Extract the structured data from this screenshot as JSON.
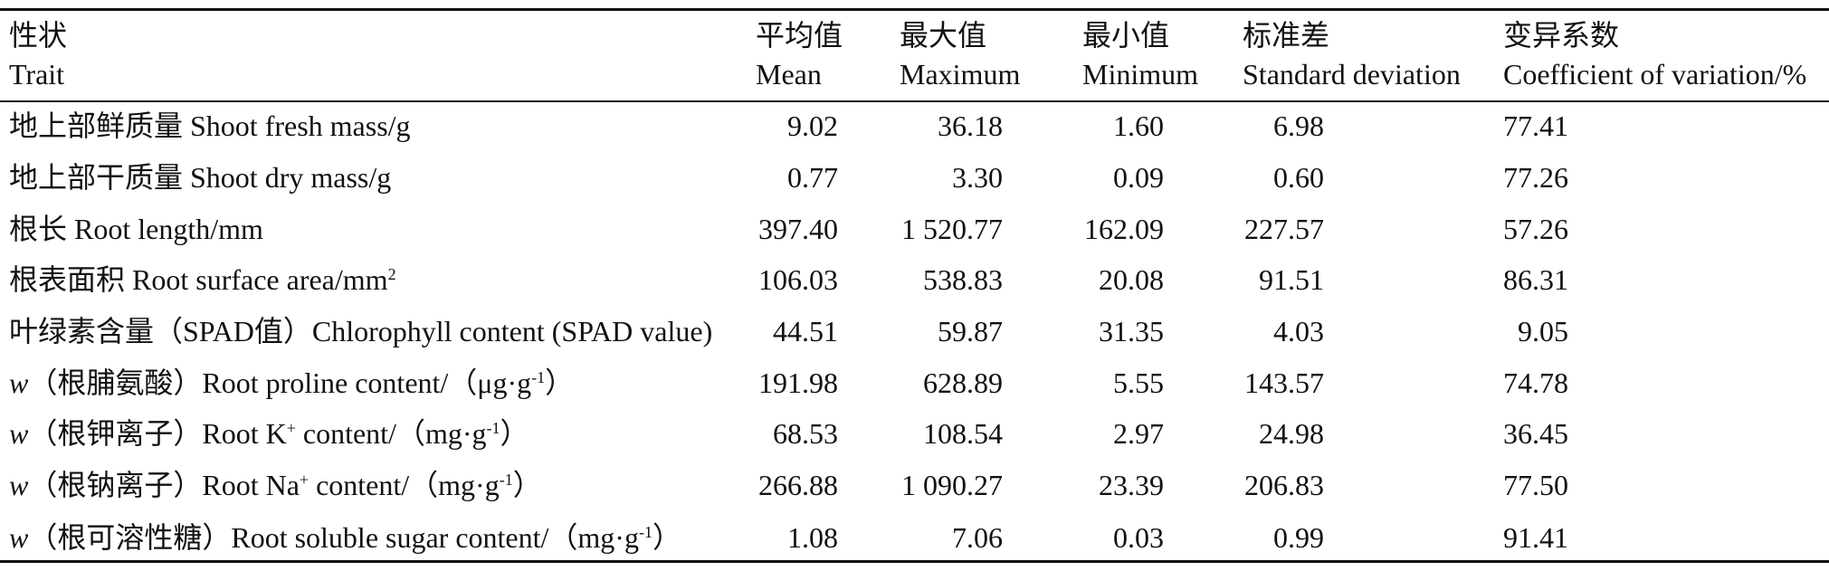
{
  "table": {
    "headers": [
      {
        "zh": "性状",
        "en": "Trait"
      },
      {
        "zh": "平均值",
        "en": "Mean"
      },
      {
        "zh": "最大值",
        "en": "Maximum"
      },
      {
        "zh": "最小值",
        "en": "Minimum"
      },
      {
        "zh": "标准差",
        "en": "Standard deviation"
      },
      {
        "zh": "变异系数",
        "en": "Coefficient of variation/%"
      }
    ],
    "rows": [
      {
        "trait": [
          "地上部鲜质量 Shoot fresh mass/g"
        ],
        "values": [
          "9.02",
          "36.18",
          "1.60",
          "6.98",
          "77.41"
        ]
      },
      {
        "trait": [
          "地上部干质量 Shoot dry mass/g"
        ],
        "values": [
          "0.77",
          "3.30",
          "0.09",
          "0.60",
          "77.26"
        ]
      },
      {
        "trait": [
          "根长 Root length/mm"
        ],
        "values": [
          "397.40",
          "1 520.77",
          "162.09",
          "227.57",
          "57.26"
        ]
      },
      {
        "trait": [
          "根表面积 Root surface area/mm",
          "2"
        ],
        "values": [
          "106.03",
          "538.83",
          "20.08",
          "91.51",
          "86.31"
        ]
      },
      {
        "trait": [
          "叶绿素含量（SPAD值）Chlorophyll content (SPAD value)"
        ],
        "values": [
          "44.51",
          "59.87",
          "31.35",
          "4.03",
          "9.05"
        ]
      },
      {
        "trait": [
          "w",
          "（根脯氨酸）Root proline content/（μg·g",
          "-1",
          "）"
        ],
        "values": [
          "191.98",
          "628.89",
          "5.55",
          "143.57",
          "74.78"
        ]
      },
      {
        "trait": [
          "w",
          "（根钾离子）Root K",
          "+",
          " content/（mg·g",
          "-1",
          "）"
        ],
        "values": [
          "68.53",
          "108.54",
          "2.97",
          "24.98",
          "36.45"
        ]
      },
      {
        "trait": [
          "w",
          "（根钠离子）Root Na",
          "+",
          " content/（mg·g",
          "-1",
          "）"
        ],
        "values": [
          "266.88",
          "1 090.27",
          "23.39",
          "206.83",
          "77.50"
        ]
      },
      {
        "trait": [
          "w",
          "（根可溶性糖）Root soluble sugar content/（mg·g",
          "-1",
          "）"
        ],
        "values": [
          "1.08",
          "7.06",
          "0.03",
          "0.99",
          "91.41"
        ]
      }
    ]
  }
}
